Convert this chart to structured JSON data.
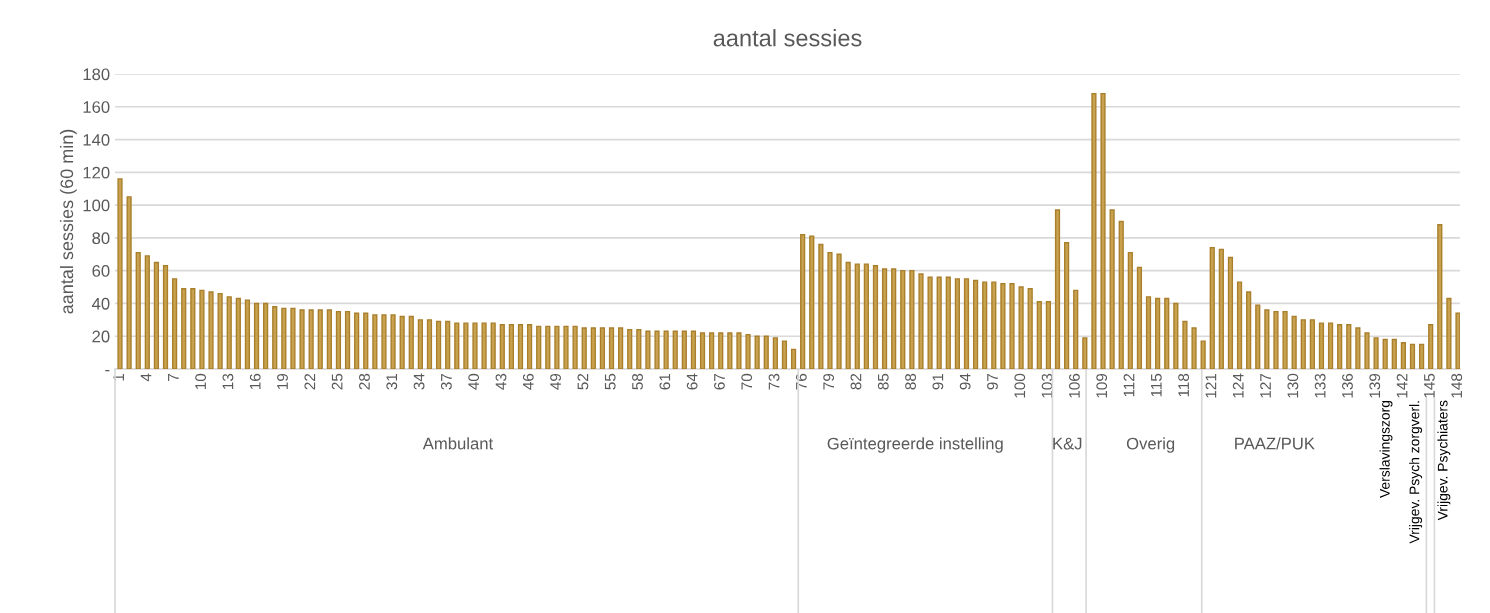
{
  "chart_data": {
    "type": "bar",
    "title": "aantal sessies",
    "ylabel": "aantal sessies (60 min)",
    "color": "#c8a24e",
    "categories": [
      "1",
      null,
      null,
      "4",
      null,
      null,
      "7",
      null,
      null,
      "10",
      null,
      null,
      "13",
      null,
      null,
      "16",
      null,
      null,
      "19",
      null,
      null,
      "22",
      null,
      null,
      "25",
      null,
      null,
      "28",
      null,
      null,
      "31",
      null,
      null,
      "34",
      null,
      null,
      "37",
      null,
      null,
      "40",
      null,
      null,
      "43",
      null,
      null,
      "46",
      null,
      null,
      "49",
      null,
      null,
      "52",
      null,
      null,
      "55",
      null,
      null,
      "58",
      null,
      null,
      "61",
      null,
      null,
      "64",
      null,
      null,
      "67",
      null,
      null,
      "70",
      null,
      null,
      "73",
      null,
      null,
      "76",
      null,
      null,
      "79",
      null,
      null,
      "82",
      null,
      null,
      "85",
      null,
      null,
      "88",
      null,
      null,
      "91",
      null,
      null,
      "94",
      null,
      null,
      "97",
      null,
      null,
      "100",
      null,
      null,
      "103",
      null,
      null,
      "106",
      null,
      null,
      "109",
      null,
      null,
      "112",
      null,
      null,
      "115",
      null,
      null,
      "118",
      null,
      null,
      "121",
      null,
      null,
      "124",
      null,
      null,
      "127",
      null,
      null,
      "130",
      null,
      null,
      "133",
      null,
      null,
      "136",
      null,
      null,
      "139",
      null,
      null,
      "142",
      null,
      null,
      "145",
      null,
      null,
      "148"
    ],
    "values": [
      116,
      105,
      71,
      69,
      65,
      63,
      55,
      49,
      49,
      48,
      47,
      46,
      44,
      43,
      42,
      40,
      40,
      38,
      37,
      37,
      36,
      36,
      36,
      36,
      35,
      35,
      34,
      34,
      33,
      33,
      33,
      32,
      32,
      30,
      30,
      29,
      29,
      28,
      28,
      28,
      28,
      28,
      27,
      27,
      27,
      27,
      26,
      26,
      26,
      26,
      26,
      25,
      25,
      25,
      25,
      25,
      24,
      24,
      23,
      23,
      23,
      23,
      23,
      23,
      22,
      22,
      22,
      22,
      22,
      21,
      20,
      20,
      19,
      17,
      12,
      82,
      81,
      76,
      71,
      70,
      65,
      64,
      64,
      63,
      61,
      61,
      60,
      60,
      58,
      56,
      56,
      56,
      55,
      55,
      54,
      53,
      53,
      52,
      52,
      50,
      49,
      41,
      41,
      97,
      77,
      48,
      19,
      168,
      168,
      97,
      90,
      71,
      62,
      44,
      43,
      43,
      40,
      29,
      25,
      17,
      74,
      73,
      68,
      53,
      47,
      39,
      36,
      35,
      35,
      32,
      30,
      30,
      28,
      28,
      27,
      27,
      25,
      22,
      19,
      18,
      18,
      16,
      15,
      15,
      27,
      88,
      43,
      34
    ],
    "ylim": [
      0,
      180
    ],
    "yticks": [
      {
        "value": 0,
        "label": "-"
      },
      20,
      40,
      60,
      80,
      100,
      120,
      140,
      160,
      180
    ],
    "grid": "y",
    "annotations": [
      "Ambulant",
      "Geïntegreerde instelling",
      "K&J",
      "Overig",
      "PAAZ/PUK",
      "Verslavingszorg",
      "Vrijgev. Psych zorgverl.",
      "Vrijgev. Psychiaters"
    ]
  }
}
